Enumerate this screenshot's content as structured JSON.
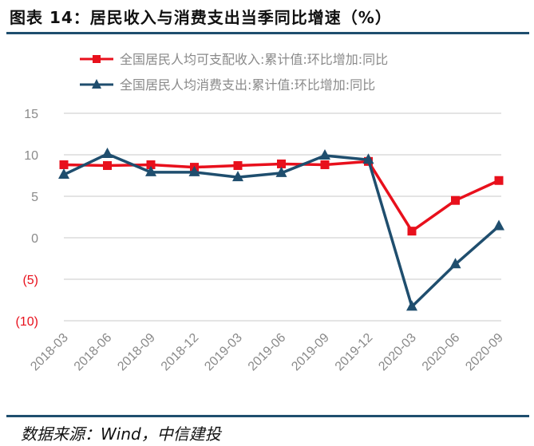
{
  "title": "图表 14：居民收入与消费支出当季同比增速（%）",
  "source": "数据来源：Wind，中信建投",
  "colors": {
    "income": "#e8101c",
    "consumption": "#1f4e6e",
    "axis_text": "#8a8a8a",
    "negative_text": "#e8101c",
    "grid": "#c8c8c8"
  },
  "chart_data": {
    "type": "line",
    "title": "",
    "xlabel": "",
    "ylabel": "",
    "categories": [
      "2018-03",
      "2018-06",
      "2018-09",
      "2018-12",
      "2019-03",
      "2019-06",
      "2019-09",
      "2019-12",
      "2020-03",
      "2020-06",
      "2020-09"
    ],
    "series": [
      {
        "name": "全国居民人均可支配收入:累计值:环比增加:同比",
        "marker": "square",
        "color": "#e8101c",
        "values": [
          8.8,
          8.7,
          8.8,
          8.5,
          8.7,
          8.9,
          8.8,
          9.2,
          0.8,
          4.5,
          6.9
        ]
      },
      {
        "name": "全国居民人均消费支出:累计值:环比增加:同比",
        "marker": "triangle",
        "color": "#1f4e6e",
        "values": [
          7.6,
          10.1,
          7.9,
          7.9,
          7.3,
          7.8,
          9.9,
          9.4,
          -8.3,
          -3.2,
          1.4
        ]
      }
    ],
    "ylim": [
      -10,
      15
    ],
    "yticks": [
      15,
      10,
      5,
      0,
      -5,
      -10
    ],
    "ytick_labels": [
      "15",
      "10",
      "5",
      "0",
      "(5)",
      "(10)"
    ],
    "grid": true,
    "legend": "top"
  }
}
